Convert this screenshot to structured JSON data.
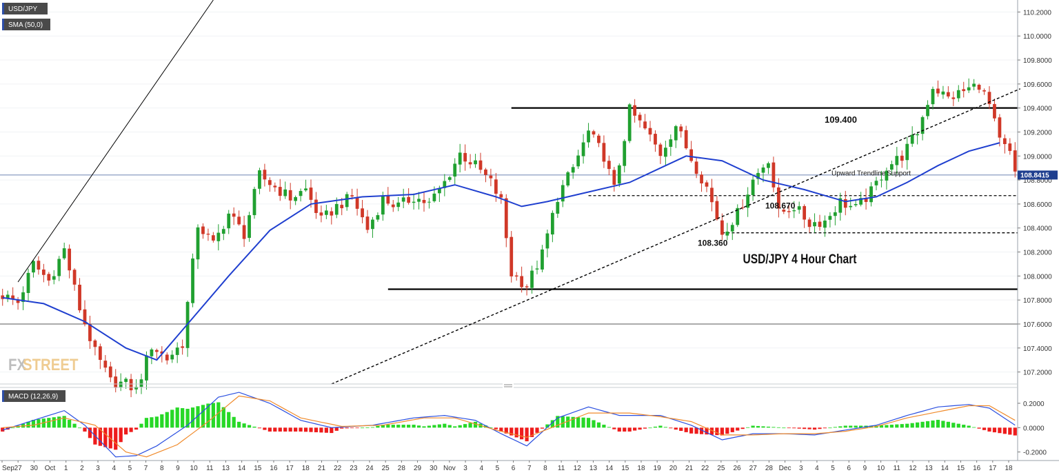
{
  "tags": {
    "symbol": "USD/JPY",
    "sma": "SMA (50,0)",
    "macd": "MACD (12,26,9)"
  },
  "watermark": {
    "fx": "FX",
    "street": "STREET"
  },
  "title": "USD/JPY 4 Hour Chart",
  "last_price": "108.8415",
  "colors": {
    "up": "#20a030",
    "down": "#d03828",
    "sma": "#1f3fcf",
    "macd": "#2a4fe0",
    "signal": "#f08a2a",
    "hist_up": "#27d827",
    "hist_down": "#ee1c1c",
    "tag_bg": "#4a4a4a",
    "price_tag_bg": "#1f3f8f"
  },
  "annotations": [
    {
      "text": "109.400",
      "price": 109.3
    },
    {
      "text": "108.670",
      "price": 108.585
    },
    {
      "text": "108.360",
      "price": 108.275
    },
    {
      "text": "Upward Trendline",
      "price": 108.86
    },
    {
      "text": "Support",
      "price": 108.86
    }
  ],
  "chart_data": {
    "type": "candlestick",
    "title": "USD/JPY 4 Hour Chart",
    "price_axis": {
      "min": 107.1,
      "max": 110.3,
      "ticks": [
        "107.2000",
        "107.4000",
        "107.6000",
        "107.8000",
        "108.0000",
        "108.2000",
        "108.4000",
        "108.6000",
        "108.8000",
        "109.0000",
        "109.2000",
        "109.4000",
        "109.6000",
        "109.8000",
        "110.0000",
        "110.2000"
      ]
    },
    "macd_axis": {
      "min": -0.27,
      "max": 0.33,
      "ticks": [
        "0.2000",
        "0.0000",
        "-0.2000"
      ]
    },
    "x_labels": [
      "Sep",
      "27",
      "30",
      "Oct",
      "1",
      "2",
      "3",
      "4",
      "5",
      "7",
      "8",
      "9",
      "10",
      "11",
      "13",
      "14",
      "15",
      "16",
      "17",
      "18",
      "21",
      "22",
      "23",
      "24",
      "25",
      "28",
      "29",
      "30",
      "Nov",
      "3",
      "4",
      "5",
      "6",
      "7",
      "8",
      "11",
      "12",
      "13",
      "14",
      "15",
      "18",
      "19",
      "20",
      "21",
      "22",
      "25",
      "26",
      "27",
      "28",
      "Dec",
      "3",
      "4",
      "5",
      "6",
      "9",
      "10",
      "11",
      "12",
      "13",
      "14",
      "15",
      "16",
      "17",
      "18"
    ],
    "close_anchors": [
      [
        0,
        107.84
      ],
      [
        3,
        107.78
      ],
      [
        6,
        108.1
      ],
      [
        9,
        107.96
      ],
      [
        12,
        108.22
      ],
      [
        15,
        107.73
      ],
      [
        18,
        107.36
      ],
      [
        21,
        107.12
      ],
      [
        24,
        107.1
      ],
      [
        26,
        107.05
      ],
      [
        29,
        107.42
      ],
      [
        32,
        107.31
      ],
      [
        35,
        107.44
      ],
      [
        38,
        108.43
      ],
      [
        41,
        108.26
      ],
      [
        44,
        108.52
      ],
      [
        47,
        108.35
      ],
      [
        50,
        108.84
      ],
      [
        53,
        108.74
      ],
      [
        56,
        108.65
      ],
      [
        59,
        108.72
      ],
      [
        62,
        108.46
      ],
      [
        65,
        108.58
      ],
      [
        68,
        108.66
      ],
      [
        71,
        108.39
      ],
      [
        74,
        108.64
      ],
      [
        77,
        108.58
      ],
      [
        80,
        108.66
      ],
      [
        83,
        108.6
      ],
      [
        86,
        108.78
      ],
      [
        89,
        109.02
      ],
      [
        92,
        108.92
      ],
      [
        95,
        108.78
      ],
      [
        97,
        108.62
      ],
      [
        99,
        108.02
      ],
      [
        102,
        107.92
      ],
      [
        105,
        108.18
      ],
      [
        108,
        108.66
      ],
      [
        111,
        108.9
      ],
      [
        114,
        109.2
      ],
      [
        117,
        109.0
      ],
      [
        119,
        108.72
      ],
      [
        122,
        109.38
      ],
      [
        125,
        109.22
      ],
      [
        128,
        109.02
      ],
      [
        131,
        109.26
      ],
      [
        134,
        108.98
      ],
      [
        137,
        108.74
      ],
      [
        140,
        108.36
      ],
      [
        143,
        108.52
      ],
      [
        146,
        108.8
      ],
      [
        149,
        108.98
      ],
      [
        151,
        108.52
      ],
      [
        154,
        108.58
      ],
      [
        157,
        108.44
      ],
      [
        160,
        108.46
      ],
      [
        163,
        108.62
      ],
      [
        166,
        108.56
      ],
      [
        169,
        108.7
      ],
      [
        172,
        108.91
      ],
      [
        175,
        109.0
      ],
      [
        178,
        109.2
      ],
      [
        181,
        109.58
      ],
      [
        184,
        109.48
      ],
      [
        187,
        109.54
      ],
      [
        190,
        109.6
      ],
      [
        192,
        109.42
      ],
      [
        194,
        109.12
      ],
      [
        196,
        109.02
      ],
      [
        197,
        108.84
      ]
    ],
    "sma_50": [
      [
        0,
        107.82
      ],
      [
        8,
        107.77
      ],
      [
        16,
        107.62
      ],
      [
        24,
        107.4
      ],
      [
        30,
        107.3
      ],
      [
        36,
        107.6
      ],
      [
        44,
        108.0
      ],
      [
        52,
        108.38
      ],
      [
        60,
        108.6
      ],
      [
        70,
        108.66
      ],
      [
        80,
        108.68
      ],
      [
        88,
        108.76
      ],
      [
        96,
        108.66
      ],
      [
        101,
        108.58
      ],
      [
        106,
        108.62
      ],
      [
        114,
        108.7
      ],
      [
        122,
        108.78
      ],
      [
        128,
        108.9
      ],
      [
        133,
        109.0
      ],
      [
        140,
        108.96
      ],
      [
        148,
        108.8
      ],
      [
        156,
        108.72
      ],
      [
        164,
        108.62
      ],
      [
        170,
        108.66
      ],
      [
        176,
        108.78
      ],
      [
        182,
        108.92
      ],
      [
        188,
        109.04
      ],
      [
        194,
        109.11
      ]
    ],
    "macd_line": [
      [
        0,
        -0.02
      ],
      [
        6,
        0.06
      ],
      [
        12,
        0.14
      ],
      [
        16,
        0.02
      ],
      [
        22,
        -0.24
      ],
      [
        26,
        -0.23
      ],
      [
        30,
        -0.15
      ],
      [
        36,
        0.02
      ],
      [
        42,
        0.25
      ],
      [
        46,
        0.29
      ],
      [
        52,
        0.2
      ],
      [
        58,
        0.06
      ],
      [
        64,
        0.0
      ],
      [
        72,
        0.02
      ],
      [
        80,
        0.08
      ],
      [
        86,
        0.1
      ],
      [
        92,
        0.06
      ],
      [
        97,
        -0.05
      ],
      [
        102,
        -0.15
      ],
      [
        108,
        0.08
      ],
      [
        114,
        0.17
      ],
      [
        120,
        0.1
      ],
      [
        128,
        0.1
      ],
      [
        134,
        0.02
      ],
      [
        140,
        -0.1
      ],
      [
        146,
        -0.05
      ],
      [
        152,
        -0.05
      ],
      [
        158,
        -0.06
      ],
      [
        164,
        -0.02
      ],
      [
        170,
        0.02
      ],
      [
        176,
        0.1
      ],
      [
        182,
        0.17
      ],
      [
        188,
        0.19
      ],
      [
        192,
        0.16
      ],
      [
        197,
        0.02
      ]
    ],
    "signal_line": [
      [
        0,
        0.0
      ],
      [
        6,
        0.02
      ],
      [
        12,
        0.08
      ],
      [
        18,
        0.02
      ],
      [
        24,
        -0.2
      ],
      [
        28,
        -0.24
      ],
      [
        34,
        -0.14
      ],
      [
        40,
        0.05
      ],
      [
        46,
        0.26
      ],
      [
        52,
        0.22
      ],
      [
        58,
        0.08
      ],
      [
        66,
        0.01
      ],
      [
        74,
        0.02
      ],
      [
        82,
        0.08
      ],
      [
        88,
        0.08
      ],
      [
        96,
        -0.02
      ],
      [
        102,
        -0.08
      ],
      [
        108,
        0.02
      ],
      [
        114,
        0.12
      ],
      [
        122,
        0.12
      ],
      [
        128,
        0.09
      ],
      [
        134,
        0.05
      ],
      [
        140,
        -0.06
      ],
      [
        146,
        -0.06
      ],
      [
        152,
        -0.05
      ],
      [
        158,
        -0.05
      ],
      [
        164,
        -0.03
      ],
      [
        170,
        0.01
      ],
      [
        176,
        0.08
      ],
      [
        182,
        0.13
      ],
      [
        188,
        0.18
      ],
      [
        192,
        0.18
      ],
      [
        197,
        0.06
      ]
    ],
    "horizontal_levels": [
      {
        "price": 109.4,
        "style": "solid",
        "from_bar": 99,
        "to_bar": 198
      },
      {
        "price": 108.67,
        "style": "dashed",
        "from_bar": 114,
        "to_bar": 198
      },
      {
        "price": 108.36,
        "style": "dashed",
        "from_bar": 140,
        "to_bar": 198
      },
      {
        "price": 107.89,
        "style": "solid",
        "from_bar": 75,
        "to_bar": 198
      },
      {
        "price": 107.6,
        "style": "solid-thin",
        "from_bar": 0,
        "to_bar": 198
      },
      {
        "price": 108.8415,
        "style": "price-line",
        "from_bar": 0,
        "to_bar": 198
      }
    ],
    "trendlines": [
      {
        "style": "dashed",
        "from": [
          64,
          107.1
        ],
        "to": [
          198,
          109.56
        ]
      },
      {
        "style": "solid-thin",
        "from": [
          3,
          107.95
        ],
        "to": [
          41,
          110.3
        ]
      }
    ],
    "n_bars": 198
  }
}
